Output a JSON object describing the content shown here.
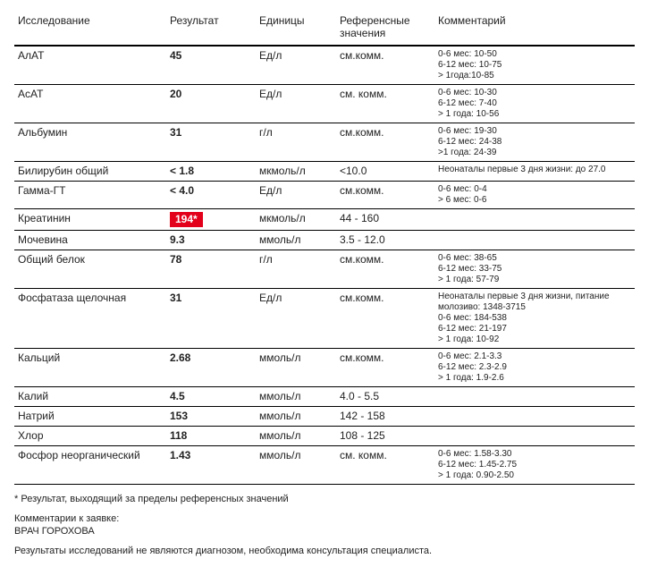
{
  "headers": {
    "test": "Исследование",
    "result": "Результат",
    "unit": "Единицы",
    "ref": "Референсные значения",
    "comment": "Комментарий"
  },
  "rows": [
    {
      "test": "АлАТ",
      "result": "45",
      "flagged": false,
      "unit": "Ед/л",
      "ref": "см.комм.",
      "comment": "0-6 мес: 10-50\n6-12 мес: 10-75\n> 1года:10-85"
    },
    {
      "test": "АсАТ",
      "result": "20",
      "flagged": false,
      "unit": "Ед/л",
      "ref": "см. комм.",
      "comment": "0-6 мес: 10-30\n6-12 мес: 7-40\n> 1 года: 10-56"
    },
    {
      "test": "Альбумин",
      "result": "31",
      "flagged": false,
      "unit": "г/л",
      "ref": "см.комм.",
      "comment": "0-6 мес: 19-30\n6-12 мес: 24-38\n>1 года: 24-39"
    },
    {
      "test": "Билирубин общий",
      "result": "< 1.8",
      "flagged": false,
      "unit": "мкмоль/л",
      "ref": "<10.0",
      "comment": "Неонаталы первые 3 дня жизни: до 27.0"
    },
    {
      "test": "Гамма-ГТ",
      "result": "< 4.0",
      "flagged": false,
      "unit": "Ед/л",
      "ref": "см.комм.",
      "comment": "0-6 мес: 0-4\n> 6 мес: 0-6"
    },
    {
      "test": "Креатинин",
      "result": "194*",
      "flagged": true,
      "unit": "мкмоль/л",
      "ref": "44 - 160",
      "comment": ""
    },
    {
      "test": "Мочевина",
      "result": "9.3",
      "flagged": false,
      "unit": "ммоль/л",
      "ref": "3.5 - 12.0",
      "comment": ""
    },
    {
      "test": "Общий белок",
      "result": "78",
      "flagged": false,
      "unit": "г/л",
      "ref": "см.комм.",
      "comment": "0-6 мес: 38-65\n6-12 мес: 33-75\n> 1 года: 57-79"
    },
    {
      "test": "Фосфатаза щелочная",
      "result": "31",
      "flagged": false,
      "unit": "Ед/л",
      "ref": "см.комм.",
      "comment": "Неонаталы первые 3 дня жизни, питание молозиво: 1348-3715\n0-6 мес: 184-538\n6-12 мес: 21-197\n> 1 года: 10-92"
    },
    {
      "test": "Кальций",
      "result": "2.68",
      "flagged": false,
      "unit": "ммоль/л",
      "ref": "см.комм.",
      "comment": "0-6 мес: 2.1-3.3\n6-12 мес: 2.3-2.9\n> 1 года: 1.9-2.6"
    },
    {
      "test": "Калий",
      "result": "4.5",
      "flagged": false,
      "unit": "ммоль/л",
      "ref": "4.0 - 5.5",
      "comment": ""
    },
    {
      "test": "Натрий",
      "result": "153",
      "flagged": false,
      "unit": "ммоль/л",
      "ref": "142 - 158",
      "comment": ""
    },
    {
      "test": "Хлор",
      "result": "118",
      "flagged": false,
      "unit": "ммоль/л",
      "ref": "108 - 125",
      "comment": ""
    },
    {
      "test": "Фосфор неорганический",
      "result": "1.43",
      "flagged": false,
      "unit": "ммоль/л",
      "ref": "см. комм.",
      "comment": "0-6 мес: 1.58-3.30\n6-12 мес: 1.45-2.75\n> 1 года: 0.90-2.50"
    }
  ],
  "footnote": "* Результат, выходящий за пределы референсных значений",
  "comments_label": "Комментарии к заявке:",
  "doctor": "ВРАЧ ГОРОХОВА",
  "disclaimer": "Результаты исследований не являются диагнозом, необходима консультация специалиста.",
  "colors": {
    "flag_bg": "#e3001b",
    "flag_fg": "#ffffff",
    "text": "#222222",
    "border": "#000000"
  }
}
